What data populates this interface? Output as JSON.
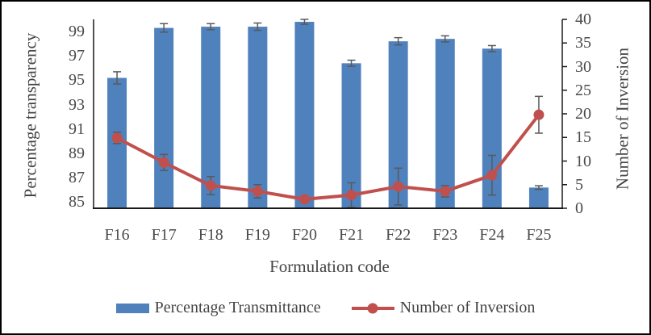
{
  "chart_data": {
    "type": "bar+line",
    "categories": [
      "F16",
      "F17",
      "F18",
      "F19",
      "F20",
      "F21",
      "F22",
      "F23",
      "F24",
      "F25"
    ],
    "series": [
      {
        "name": "Percentage Transmittance",
        "type": "bar",
        "axis": "left",
        "color": "#4F81BD",
        "values": [
          95.2,
          99.3,
          99.4,
          99.4,
          99.8,
          96.4,
          98.2,
          98.4,
          97.6,
          86.2
        ],
        "errors": [
          0.5,
          0.35,
          0.25,
          0.3,
          0.2,
          0.25,
          0.3,
          0.25,
          0.25,
          0.15
        ]
      },
      {
        "name": "Number of Inversion",
        "type": "line",
        "axis": "right",
        "color": "#C0504D",
        "values": [
          14.9,
          9.7,
          4.8,
          3.6,
          1.9,
          2.8,
          4.6,
          3.6,
          7.0,
          19.8
        ],
        "errors": [
          1.2,
          1.7,
          1.9,
          1.4,
          0.5,
          2.6,
          3.9,
          1.2,
          4.2,
          3.9
        ]
      }
    ],
    "left_axis": {
      "label": "Percentage transparency",
      "ticks": [
        85,
        87,
        89,
        91,
        93,
        95,
        97,
        99
      ],
      "range": [
        84.5,
        100
      ]
    },
    "right_axis": {
      "label": "Number of Inversion",
      "ticks": [
        0,
        5,
        10,
        15,
        20,
        25,
        30,
        35,
        40
      ],
      "range": [
        0,
        40
      ]
    },
    "xlabel": "Formulation code",
    "grid": false,
    "legend_position": "bottom",
    "error_bar_color": "#595959",
    "axis_line_color": "#1a1a1a"
  }
}
